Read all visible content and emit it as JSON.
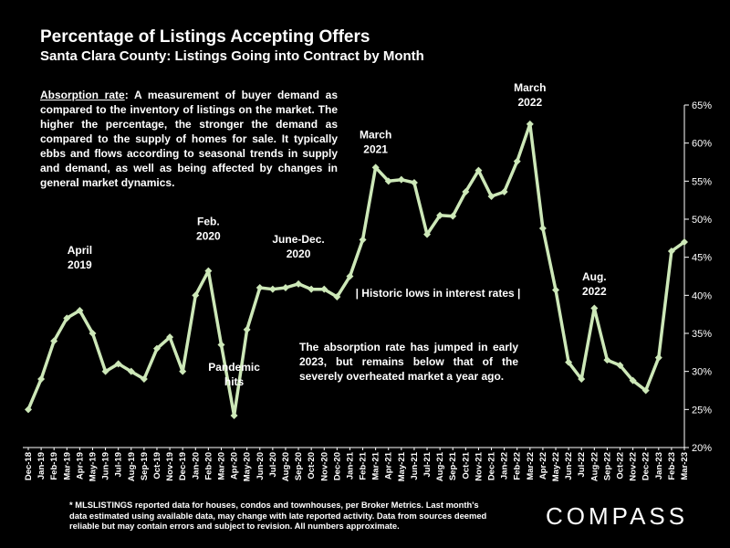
{
  "header": {
    "title": "Percentage of Listings Accepting Offers",
    "subtitle": "Santa Clara County: Listings Going into Contract by Month"
  },
  "description": {
    "term": "Absorption rate",
    "text": ":  A measurement of buyer demand as compared to the inventory of listings on the market. The higher the percentage, the stronger the demand as compared to the supply of homes for sale. It typically ebbs and flows according to seasonal trends in supply and demand, as well as being affected by changes in general market dynamics."
  },
  "note": "The absorption rate has jumped in early 2023, but remains below that of the severely overheated market a year ago.",
  "footnote": "* MLSLISTINGS reported data for houses, condos and townhouses, per Broker Metrics. Last month's data estimated using available data, may change with late reported activity. Data from sources deemed reliable but may contain errors and subject to revision. All numbers approximate.",
  "logo": "COMPASS",
  "colors": {
    "line": "#cde8b8",
    "background": "#000000",
    "text": "#ffffff"
  },
  "chart_data": {
    "type": "line",
    "title": "Percentage of Listings Accepting Offers",
    "subtitle": "Santa Clara County: Listings Going into Contract by Month",
    "y_axis_side": "right",
    "ylim": [
      20,
      65
    ],
    "yticks": [
      20,
      25,
      30,
      35,
      40,
      45,
      50,
      55,
      60,
      65
    ],
    "ytick_suffix": "%",
    "grid": false,
    "categories": [
      "Dec-18",
      "Jan-19",
      "Feb-19",
      "Mar-19",
      "Apr-19",
      "May-19",
      "Jun-19",
      "Jul-19",
      "Aug-19",
      "Sep-19",
      "Oct-19",
      "Nov-19",
      "Dec-19",
      "Jan-20",
      "Feb-20",
      "Mar-20",
      "Apr-20",
      "May-20",
      "Jun-20",
      "Jul-20",
      "Aug-20",
      "Sep-20",
      "Oct-20",
      "Nov-20",
      "Dec-20",
      "Jan-21",
      "Feb-21",
      "Mar-21",
      "Apr-21",
      "May-21",
      "Jun-21",
      "Jul-21",
      "Aug-21",
      "Sep-21",
      "Oct-21",
      "Nov-21",
      "Dec-21",
      "Jan-22",
      "Feb-22",
      "Mar-22",
      "Apr-22",
      "May-22",
      "Jun-22",
      "Jul-22",
      "Aug-22",
      "Sep-22",
      "Oct-22",
      "Nov-22",
      "Dec-22",
      "Jan-23",
      "Feb-23",
      "Mar-23"
    ],
    "xtick_labels": [
      "Dec-18",
      "Jan-19",
      "Feb-19",
      "Mar-19",
      "Apr-19",
      "May-19",
      "Jun-19",
      "Jul-19",
      "Aug-19",
      "Sep-19",
      "Oct-19",
      "Nov-19",
      "Dec-19",
      "Jan-20",
      "Feb-20",
      "Mar-20",
      "Apr-20",
      "May-20",
      "Jun-20",
      "Jul-20",
      "Aug-20",
      "Sep-20",
      "Oct-20",
      "Nov-20",
      "Dec-20",
      "Jan-21",
      "Feb-21",
      "Mar-21",
      "Apr-21",
      "May-21",
      "Jun-21",
      "Jul-21",
      "Aug-21",
      "Sep-21",
      "Oct-21",
      "Nov-21",
      "Dec-21",
      "Jan-22",
      "Feb-22",
      "Mar-22",
      "Apr-22",
      "May-22",
      "Jun-22",
      "Jul-22",
      "Aug-22",
      "Sep-22",
      "Oct-22",
      "Nov-22",
      "Dec-22",
      "Jan-23",
      "Feb-23",
      "Mar-23"
    ],
    "values": [
      25.0,
      29.0,
      34.0,
      37.0,
      38.0,
      35.0,
      30.0,
      31.0,
      30.0,
      29.0,
      33.0,
      34.5,
      30.0,
      40.0,
      43.2,
      33.5,
      24.2,
      35.5,
      41.0,
      40.8,
      41.0,
      41.5,
      40.8,
      40.8,
      39.8,
      42.5,
      47.3,
      56.8,
      55.0,
      55.2,
      54.8,
      48.0,
      50.5,
      50.4,
      53.6,
      56.4,
      53.0,
      53.6,
      57.6,
      62.5,
      48.8,
      40.7,
      31.2,
      29.0,
      38.3,
      31.5,
      30.8,
      28.8,
      27.5,
      31.8,
      45.8,
      47.0
    ],
    "annotations": [
      {
        "label_lines": [
          "April",
          "2019"
        ],
        "category": "Apr-19"
      },
      {
        "label_lines": [
          "Feb.",
          "2020"
        ],
        "category": "Feb-20"
      },
      {
        "label_lines": [
          "Pandemic",
          "hits"
        ],
        "category": "Apr-20"
      },
      {
        "label_lines": [
          "June-Dec.",
          "2020"
        ],
        "category": "Sep-20"
      },
      {
        "label_lines": [
          "March",
          "2021"
        ],
        "category": "Mar-21"
      },
      {
        "label_lines": [
          "| Historic lows in interest rates |"
        ],
        "category": "Sep-21"
      },
      {
        "label_lines": [
          "March",
          "2022"
        ],
        "category": "Mar-22"
      },
      {
        "label_lines": [
          "Aug.",
          "2022"
        ],
        "category": "Aug-22"
      }
    ]
  }
}
